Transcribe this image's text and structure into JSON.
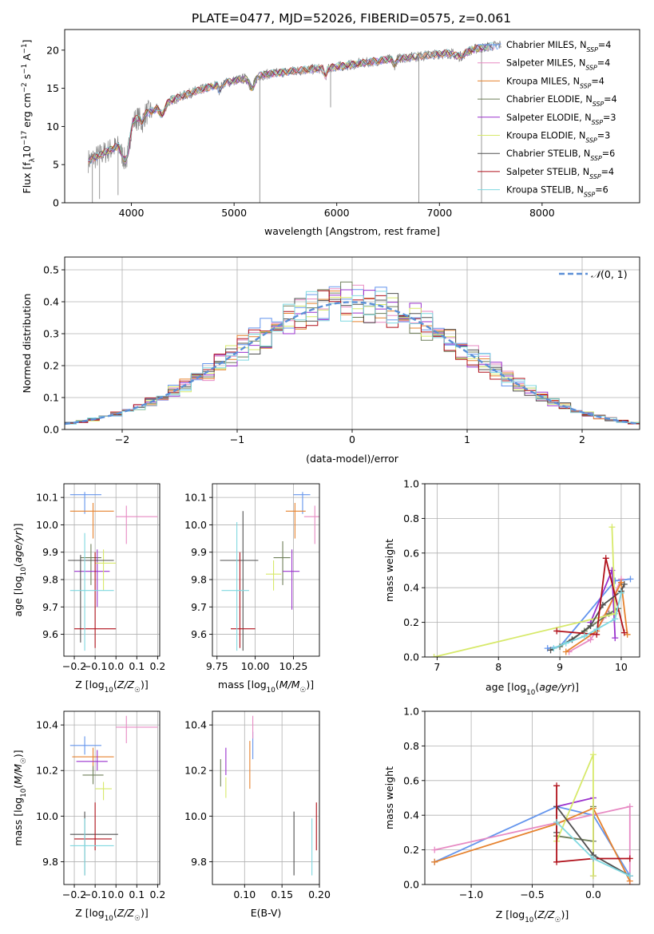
{
  "figure_title": "PLATE=0477, MJD=52026, FIBERID=0575, z=0.061",
  "colors": {
    "series": [
      "#6495ed",
      "#e78ac3",
      "#e6822e",
      "#6f7f5a",
      "#9a32cd",
      "#d7e96a",
      "#505050",
      "#b0111b",
      "#7fd8e0"
    ],
    "grid": "#b0b0b0",
    "normal_line": "#5b8fd6"
  },
  "legend_labels": [
    "Chabrier MILES, N_SSP=4",
    "Salpeter MILES, N_SSP=4",
    "Kroupa MILES, N_SSP=4",
    "Chabrier ELODIE, N_SSP=4",
    "Salpeter ELODIE, N_SSP=3",
    "Kroupa ELODIE, N_SSP=3",
    "Chabrier STELIB, N_SSP=6",
    "Salpeter STELIB, N_SSP=4",
    "Kroupa STELIB, N_SSP=6"
  ],
  "chart_data": [
    {
      "id": "spectrum",
      "type": "line",
      "xlabel": "wavelength [Angstrom, rest frame]",
      "ylabel": "Flux [f_λ 10^-17 erg cm^-2 s^-1 A^-1]",
      "xlim": [
        3350,
        8950
      ],
      "ylim": [
        0,
        22.7
      ],
      "xticks": [
        4000,
        5000,
        6000,
        7000,
        8000
      ],
      "yticks": [
        0,
        5,
        10,
        15,
        20
      ],
      "grid": false,
      "legend": "right",
      "continuum_x": [
        3580,
        3700,
        3800,
        3900,
        3950,
        4000,
        4100,
        4200,
        4300,
        4400,
        4600,
        4800,
        5000,
        5300,
        5600,
        6000,
        6400,
        6800,
        7200,
        7500,
        7700,
        8000,
        8300,
        8800
      ],
      "continuum_y": [
        5.5,
        6.3,
        7.0,
        7.6,
        9.2,
        10.5,
        11.5,
        12.0,
        12.8,
        13.5,
        14.5,
        15.3,
        16.0,
        16.8,
        17.3,
        17.8,
        18.6,
        19.2,
        19.8,
        20.5,
        20.9,
        21.0,
        20.4,
        19.5
      ],
      "observed_lines": [
        {
          "x": 3620,
          "y": 0
        },
        {
          "x": 3690,
          "y": 0.5
        },
        {
          "x": 3870,
          "y": 1.0
        },
        {
          "x": 5250,
          "y": 0
        },
        {
          "x": 5940,
          "y": 12.5
        },
        {
          "x": 6800,
          "y": 0
        },
        {
          "x": 7410,
          "y": 0
        }
      ]
    },
    {
      "id": "residual-histogram",
      "type": "line",
      "xlabel": "(data-model)/error",
      "ylabel": "Normed distribution",
      "xlim": [
        -2.5,
        2.5
      ],
      "ylim": [
        0,
        0.54
      ],
      "xticks": [
        -2,
        -1,
        0,
        1,
        2
      ],
      "yticks": [
        0.0,
        0.1,
        0.2,
        0.3,
        0.4,
        0.5
      ],
      "grid": true,
      "legend_label": "N(0,1)",
      "legend": "upper right",
      "bin_width": 0.1
    },
    {
      "id": "age-vs-z",
      "type": "scatter",
      "xlabel": "Z [log10(Z/Z☉)]",
      "ylabel": "age [log10(age/yr)]",
      "xlim": [
        -0.25,
        0.21
      ],
      "ylim": [
        9.52,
        10.15
      ],
      "xticks": [
        -0.2,
        -0.1,
        0.0,
        0.1,
        0.2
      ],
      "yticks": [
        9.6,
        9.7,
        9.8,
        9.9,
        10.0,
        10.1
      ],
      "grid": true,
      "points": [
        {
          "x": -0.15,
          "y": 10.11,
          "xerr": [
            0.07,
            0.08
          ],
          "yerr": [
            0.07,
            0.01
          ]
        },
        {
          "x": 0.05,
          "y": 10.03,
          "xerr": [
            0.05,
            0.15
          ],
          "yerr": [
            0.1,
            0.04
          ]
        },
        {
          "x": -0.11,
          "y": 10.05,
          "xerr": [
            0.11,
            0.1
          ],
          "yerr": [
            0.1,
            0.03
          ]
        },
        {
          "x": -0.12,
          "y": 9.88,
          "xerr": [
            0.05,
            0.05
          ],
          "yerr": [
            0.1,
            0.05
          ]
        },
        {
          "x": -0.09,
          "y": 9.83,
          "xerr": [
            0.11,
            0.06
          ],
          "yerr": [
            0.13,
            0.08
          ]
        },
        {
          "x": -0.06,
          "y": 9.86,
          "xerr": [
            0.04,
            0.06
          ],
          "yerr": [
            0.1,
            0.05
          ]
        },
        {
          "x": -0.17,
          "y": 9.87,
          "xerr": [
            0.06,
            0.16
          ],
          "yerr": [
            0.3,
            0.02
          ]
        },
        {
          "x": -0.1,
          "y": 9.62,
          "xerr": [
            0.1,
            0.1
          ],
          "yerr": [
            0.07,
            0.28
          ]
        },
        {
          "x": -0.15,
          "y": 9.76,
          "xerr": [
            0.07,
            0.14
          ],
          "yerr": [
            0.22,
            0.21
          ]
        }
      ]
    },
    {
      "id": "age-vs-mass",
      "type": "scatter",
      "xlabel": "mass [log10(M/M☉)]",
      "ylabel": "",
      "xlim": [
        9.72,
        10.42
      ],
      "ylim": [
        9.52,
        10.15
      ],
      "xticks": [
        9.75,
        10.0,
        10.25
      ],
      "yticks": [
        9.6,
        9.7,
        9.8,
        9.9,
        10.0,
        10.1
      ],
      "grid": true,
      "points": [
        {
          "x": 10.31,
          "y": 10.11,
          "xerr": [
            0.06,
            0.05
          ],
          "yerr": [
            0.07,
            0.01
          ]
        },
        {
          "x": 10.39,
          "y": 10.03,
          "xerr": [
            0.07,
            0.06
          ],
          "yerr": [
            0.1,
            0.04
          ]
        },
        {
          "x": 10.26,
          "y": 10.05,
          "xerr": [
            0.06,
            0.07
          ],
          "yerr": [
            0.1,
            0.03
          ]
        },
        {
          "x": 10.18,
          "y": 9.88,
          "xerr": [
            0.06,
            0.05
          ],
          "yerr": [
            0.1,
            0.06
          ]
        },
        {
          "x": 10.24,
          "y": 9.83,
          "xerr": [
            0.06,
            0.05
          ],
          "yerr": [
            0.14,
            0.08
          ]
        },
        {
          "x": 10.12,
          "y": 9.82,
          "xerr": [
            0.05,
            0.05
          ],
          "yerr": [
            0.06,
            0.05
          ]
        },
        {
          "x": 9.92,
          "y": 9.87,
          "xerr": [
            0.15,
            0.1
          ],
          "yerr": [
            0.33,
            0.18
          ]
        },
        {
          "x": 9.9,
          "y": 9.62,
          "xerr": [
            0.06,
            0.1
          ],
          "yerr": [
            0.07,
            0.28
          ]
        },
        {
          "x": 9.88,
          "y": 9.76,
          "xerr": [
            0.1,
            0.08
          ],
          "yerr": [
            0.22,
            0.25
          ]
        }
      ]
    },
    {
      "id": "mass-weight-vs-age",
      "type": "line",
      "xlabel": "age [log10(age/yr)]",
      "ylabel": "mass weight",
      "xlim": [
        6.8,
        10.3
      ],
      "ylim": [
        0,
        1.0
      ],
      "xticks": [
        7,
        8,
        9,
        10
      ],
      "yticks": [
        0.0,
        0.2,
        0.4,
        0.6,
        0.8,
        1.0
      ],
      "grid": true,
      "series": [
        {
          "x": [
            8.8,
            9.0,
            9.9,
            10.15
          ],
          "y": [
            0.05,
            0.06,
            0.44,
            0.45
          ]
        },
        {
          "x": [
            9.15,
            9.5,
            9.75,
            10.0
          ],
          "y": [
            0.03,
            0.1,
            0.24,
            0.45
          ]
        },
        {
          "x": [
            9.1,
            9.6,
            10.0,
            10.1
          ],
          "y": [
            0.03,
            0.15,
            0.43,
            0.13
          ]
        },
        {
          "x": [
            9.0,
            9.4,
            9.8,
            9.95
          ],
          "y": [
            0.06,
            0.15,
            0.25,
            0.28
          ]
        },
        {
          "x": [
            9.5,
            9.85,
            9.9
          ],
          "y": [
            0.2,
            0.5,
            0.11
          ]
        },
        {
          "x": [
            6.95,
            9.9,
            9.85
          ],
          "y": [
            0.0,
            0.25,
            0.75
          ]
        },
        {
          "x": [
            8.85,
            9.2,
            9.5,
            9.7,
            10.0,
            10.05
          ],
          "y": [
            0.04,
            0.1,
            0.18,
            0.3,
            0.38,
            0.42
          ]
        },
        {
          "x": [
            8.95,
            9.6,
            9.75,
            10.05
          ],
          "y": [
            0.15,
            0.13,
            0.57,
            0.14
          ]
        },
        {
          "x": [
            8.9,
            9.1,
            9.4,
            9.6,
            9.9,
            10.0
          ],
          "y": [
            0.05,
            0.08,
            0.12,
            0.16,
            0.22,
            0.37
          ]
        }
      ]
    },
    {
      "id": "mass-vs-z",
      "type": "scatter",
      "xlabel": "Z [log10(Z/Z☉)]",
      "ylabel": "mass [log10(M/M☉)]",
      "xlim": [
        -0.25,
        0.21
      ],
      "ylim": [
        9.7,
        10.46
      ],
      "xticks": [
        -0.2,
        -0.1,
        0.0,
        0.1,
        0.2
      ],
      "yticks": [
        9.8,
        10.0,
        10.2,
        10.4
      ],
      "grid": true,
      "points": [
        {
          "x": -0.15,
          "y": 10.31,
          "xerr": [
            0.07,
            0.08
          ],
          "yerr": [
            0.04,
            0.04
          ]
        },
        {
          "x": 0.05,
          "y": 10.39,
          "xerr": [
            0.05,
            0.15
          ],
          "yerr": [
            0.07,
            0.05
          ]
        },
        {
          "x": -0.11,
          "y": 10.26,
          "xerr": [
            0.1,
            0.1
          ],
          "yerr": [
            0.06,
            0.04
          ]
        },
        {
          "x": -0.11,
          "y": 10.18,
          "xerr": [
            0.05,
            0.05
          ],
          "yerr": [
            0.04,
            0.04
          ]
        },
        {
          "x": -0.09,
          "y": 10.24,
          "xerr": [
            0.1,
            0.05
          ],
          "yerr": [
            0.04,
            0.05
          ]
        },
        {
          "x": -0.06,
          "y": 10.12,
          "xerr": [
            0.04,
            0.04
          ],
          "yerr": [
            0.05,
            0.03
          ]
        },
        {
          "x": -0.15,
          "y": 9.92,
          "xerr": [
            0.07,
            0.16
          ],
          "yerr": [
            0.18,
            0.1
          ]
        },
        {
          "x": -0.1,
          "y": 9.9,
          "xerr": [
            0.1,
            0.08
          ],
          "yerr": [
            0.05,
            0.16
          ]
        },
        {
          "x": -0.15,
          "y": 9.87,
          "xerr": [
            0.07,
            0.14
          ],
          "yerr": [
            0.13,
            0.12
          ]
        }
      ]
    },
    {
      "id": "mass-vs-ebv",
      "type": "scatter",
      "xlabel": "E(B-V)",
      "ylabel": "",
      "xlim": [
        0.057,
        0.2
      ],
      "ylim": [
        9.7,
        10.46
      ],
      "xticks": [
        0.1,
        0.15,
        0.2
      ],
      "yticks": [
        9.8,
        10.0,
        10.2,
        10.4
      ],
      "grid": true,
      "points": [
        {
          "x": 0.111,
          "y": 10.31,
          "yerr": [
            0.06,
            0.06
          ]
        },
        {
          "x": 0.111,
          "y": 10.39,
          "yerr": [
            0.05,
            0.05
          ]
        },
        {
          "x": 0.107,
          "y": 10.26,
          "yerr": [
            0.14,
            0.07
          ]
        },
        {
          "x": 0.068,
          "y": 10.18,
          "yerr": [
            0.05,
            0.07
          ]
        },
        {
          "x": 0.075,
          "y": 10.24,
          "yerr": [
            0.06,
            0.06
          ]
        },
        {
          "x": 0.075,
          "y": 10.12,
          "yerr": [
            0.04,
            0.05
          ]
        },
        {
          "x": 0.166,
          "y": 9.92,
          "yerr": [
            0.18,
            0.1
          ]
        },
        {
          "x": 0.196,
          "y": 9.9,
          "yerr": [
            0.05,
            0.16
          ]
        },
        {
          "x": 0.19,
          "y": 9.87,
          "yerr": [
            0.13,
            0.12
          ]
        }
      ]
    },
    {
      "id": "mass-weight-vs-z",
      "type": "line",
      "xlabel": "Z [log10(Z/Z☉)]",
      "ylabel": "mass weight",
      "xlim": [
        -1.38,
        0.38
      ],
      "ylim": [
        0,
        1.0
      ],
      "xticks": [
        -1.0,
        -0.5,
        0.0
      ],
      "yticks": [
        0.0,
        0.2,
        0.4,
        0.6,
        0.8,
        1.0
      ],
      "grid": true,
      "series": [
        {
          "x": [
            -1.3,
            -0.3,
            0.0,
            0.3
          ],
          "y": [
            0.13,
            0.45,
            0.4,
            0.05
          ]
        },
        {
          "x": [
            -1.3,
            0.3,
            0.3
          ],
          "y": [
            0.2,
            0.45,
            0.0
          ]
        },
        {
          "x": [
            -1.3,
            -0.3,
            0.0,
            0.3
          ],
          "y": [
            0.13,
            0.35,
            0.44,
            0.02
          ]
        },
        {
          "x": [
            -0.3,
            0.0,
            0.0
          ],
          "y": [
            0.28,
            0.25,
            0.45
          ]
        },
        {
          "x": [
            -0.3,
            0.0,
            0.0
          ],
          "y": [
            0.45,
            0.5,
            0.05
          ]
        },
        {
          "x": [
            -0.3,
            0.0,
            0.0
          ],
          "y": [
            0.25,
            0.75,
            0.05
          ]
        },
        {
          "x": [
            -0.3,
            -0.3,
            0.0,
            0.3
          ],
          "y": [
            0.3,
            0.45,
            0.17,
            0.05
          ]
        },
        {
          "x": [
            -0.3,
            -0.3,
            0.0,
            0.3
          ],
          "y": [
            0.57,
            0.13,
            0.15,
            0.15
          ]
        },
        {
          "x": [
            -0.3,
            0.0,
            0.3
          ],
          "y": [
            0.36,
            0.15,
            0.05
          ]
        }
      ]
    }
  ]
}
